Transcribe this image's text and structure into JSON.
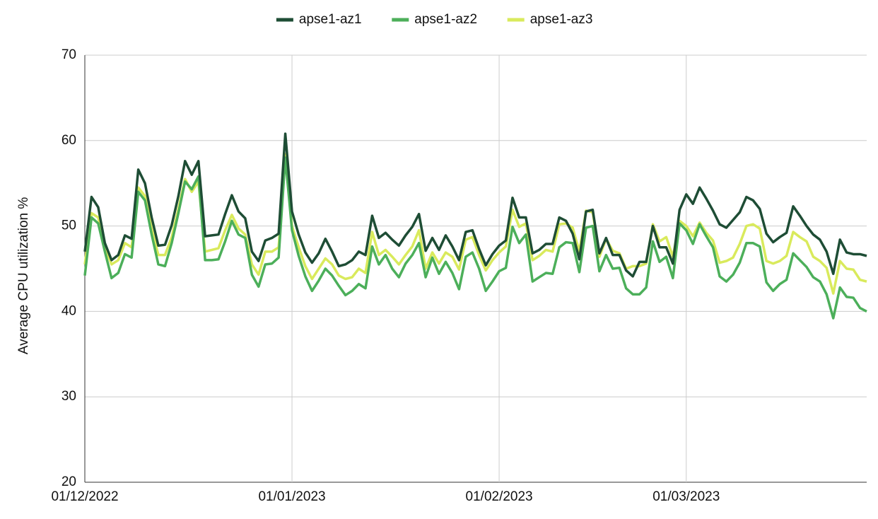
{
  "chart_data": {
    "type": "line",
    "y_label": "Average CPU utilization %",
    "legend": "top",
    "grid": true,
    "xlim": [
      "2022-12-01",
      "2023-03-28"
    ],
    "xticks": [
      {
        "value": "2022-12-01",
        "label": "01/12/2022"
      },
      {
        "value": "2023-01-01",
        "label": "01/01/2023"
      },
      {
        "value": "2023-02-01",
        "label": "01/02/2023"
      },
      {
        "value": "2023-03-01",
        "label": "01/03/2023"
      }
    ],
    "ylim": [
      20,
      70
    ],
    "yticks": [
      20,
      30,
      40,
      50,
      60,
      70
    ],
    "x": [
      "2022-12-01",
      "2022-12-02",
      "2022-12-03",
      "2022-12-04",
      "2022-12-05",
      "2022-12-06",
      "2022-12-07",
      "2022-12-08",
      "2022-12-09",
      "2022-12-10",
      "2022-12-11",
      "2022-12-12",
      "2022-12-13",
      "2022-12-14",
      "2022-12-15",
      "2022-12-16",
      "2022-12-17",
      "2022-12-18",
      "2022-12-19",
      "2022-12-20",
      "2022-12-21",
      "2022-12-22",
      "2022-12-23",
      "2022-12-24",
      "2022-12-25",
      "2022-12-26",
      "2022-12-27",
      "2022-12-28",
      "2022-12-29",
      "2022-12-30",
      "2022-12-31",
      "2023-01-01",
      "2023-01-02",
      "2023-01-03",
      "2023-01-04",
      "2023-01-05",
      "2023-01-06",
      "2023-01-07",
      "2023-01-08",
      "2023-01-09",
      "2023-01-10",
      "2023-01-11",
      "2023-01-12",
      "2023-01-13",
      "2023-01-14",
      "2023-01-15",
      "2023-01-16",
      "2023-01-17",
      "2023-01-18",
      "2023-01-19",
      "2023-01-20",
      "2023-01-21",
      "2023-01-22",
      "2023-01-23",
      "2023-01-24",
      "2023-01-25",
      "2023-01-26",
      "2023-01-27",
      "2023-01-28",
      "2023-01-29",
      "2023-01-30",
      "2023-01-31",
      "2023-02-01",
      "2023-02-02",
      "2023-02-03",
      "2023-02-04",
      "2023-02-05",
      "2023-02-06",
      "2023-02-07",
      "2023-02-08",
      "2023-02-09",
      "2023-02-10",
      "2023-02-11",
      "2023-02-12",
      "2023-02-13",
      "2023-02-14",
      "2023-02-15",
      "2023-02-16",
      "2023-02-17",
      "2023-02-18",
      "2023-02-19",
      "2023-02-20",
      "2023-02-21",
      "2023-02-22",
      "2023-02-23",
      "2023-02-24",
      "2023-02-25",
      "2023-02-26",
      "2023-02-27",
      "2023-02-28",
      "2023-03-01",
      "2023-03-02",
      "2023-03-03",
      "2023-03-04",
      "2023-03-05",
      "2023-03-06",
      "2023-03-07",
      "2023-03-08",
      "2023-03-09",
      "2023-03-10",
      "2023-03-11",
      "2023-03-12",
      "2023-03-13",
      "2023-03-14",
      "2023-03-15",
      "2023-03-16",
      "2023-03-17",
      "2023-03-18",
      "2023-03-19",
      "2023-03-20",
      "2023-03-21",
      "2023-03-22",
      "2023-03-23",
      "2023-03-24",
      "2023-03-25",
      "2023-03-26",
      "2023-03-27",
      "2023-03-28"
    ],
    "series": [
      {
        "name": "apse1-az1",
        "color": "#1e4d35",
        "values": [
          47,
          53.4,
          52.2,
          48,
          46,
          46.6,
          48.9,
          48.5,
          56.6,
          55,
          51,
          47.7,
          47.8,
          50.1,
          53.5,
          57.6,
          56,
          57.6,
          48.8,
          48.9,
          49,
          51.4,
          53.6,
          51.7,
          50.9,
          47,
          45.9,
          48.3,
          48.6,
          49.1,
          60.8,
          51.7,
          49,
          46.9,
          45.7,
          46.8,
          48.5,
          47,
          45.3,
          45.5,
          46,
          47,
          46.6,
          51.2,
          48.6,
          49.2,
          48.4,
          47.7,
          48.9,
          49.9,
          51.4,
          47.1,
          48.6,
          47.2,
          48.9,
          47.6,
          46,
          49.3,
          49.5,
          47.3,
          45.4,
          46.7,
          47.7,
          48.3,
          53.3,
          51,
          51,
          46.8,
          47.2,
          47.9,
          47.9,
          51,
          50.6,
          49.1,
          46.1,
          51.7,
          51.9,
          46.8,
          48.6,
          46.6,
          46.6,
          44.8,
          44.1,
          45.8,
          45.8,
          50,
          47.5,
          47.5,
          45.6,
          51.9,
          53.7,
          52.6,
          54.5,
          53.2,
          51.8,
          50.2,
          49.8,
          50.7,
          51.6,
          53.4,
          53,
          52,
          49.1,
          48.1,
          48.7,
          49.2,
          52.3,
          51.2,
          50,
          49,
          48.4,
          47,
          44.4,
          48.4,
          46.9,
          46.7,
          46.7,
          46.5
        ]
      },
      {
        "name": "apse1-az2",
        "color": "#4caf5a",
        "values": [
          44.2,
          51,
          50.3,
          47,
          43.9,
          44.5,
          46.7,
          46.3,
          54,
          53,
          49,
          45.5,
          45.3,
          48,
          51.5,
          55.2,
          54.3,
          55.8,
          46,
          46,
          46.1,
          48.2,
          50.6,
          49,
          48.6,
          44.3,
          42.9,
          45.5,
          45.6,
          46.3,
          58,
          49.5,
          46.5,
          44.1,
          42.4,
          43.6,
          45,
          44.2,
          43,
          41.9,
          42.4,
          43.2,
          42.7,
          47.6,
          45.5,
          46.6,
          45,
          44,
          45.6,
          46.6,
          48,
          44,
          46.3,
          44.4,
          45.8,
          44.5,
          42.6,
          46.4,
          46.9,
          45,
          42.4,
          43.5,
          44.7,
          45.1,
          49.9,
          48,
          49,
          43.5,
          44,
          44.5,
          44.4,
          47.5,
          48.1,
          48,
          44.6,
          49.8,
          50,
          44.7,
          46.6,
          45,
          45.1,
          42.7,
          42,
          42,
          42.8,
          48.2,
          45.8,
          46.4,
          43.9,
          50.3,
          49.5,
          47.9,
          50.2,
          48.8,
          47.5,
          44.1,
          43.5,
          44.3,
          45.7,
          48,
          48,
          47.6,
          43.4,
          42.4,
          43.2,
          43.7,
          46.8,
          46,
          45.2,
          44,
          43.5,
          42,
          39.2,
          42.8,
          41.7,
          41.6,
          40.4,
          40
        ]
      },
      {
        "name": "apse1-az3",
        "color": "#d9ea5c",
        "values": [
          45.5,
          51.5,
          51,
          47.5,
          45.5,
          46,
          48,
          47.5,
          54.5,
          53.5,
          49.7,
          46.6,
          46.6,
          48.7,
          52,
          55.5,
          54,
          55.2,
          47,
          47.2,
          47.4,
          49.5,
          51.3,
          49.7,
          49,
          45.5,
          44.3,
          47,
          47,
          47.5,
          58.4,
          50,
          47.5,
          45.3,
          43.8,
          45,
          46.2,
          45.5,
          44.2,
          43.8,
          44,
          45,
          44.5,
          49.3,
          46.6,
          47.2,
          46.4,
          45.5,
          46.6,
          47.6,
          49.5,
          45,
          46.9,
          45.6,
          46.9,
          46.4,
          44.9,
          48.4,
          48.7,
          46.6,
          44.8,
          46,
          46.9,
          47.6,
          51.9,
          49.9,
          50.3,
          46,
          46.5,
          47.2,
          47,
          50.2,
          50.3,
          49.8,
          47,
          51.8,
          51.6,
          46.4,
          48.5,
          47.1,
          46.8,
          45,
          45.3,
          45.3,
          45.6,
          50.2,
          48.2,
          48.7,
          46.4,
          50.6,
          50,
          48.8,
          50.4,
          49.2,
          48.3,
          45.7,
          45.9,
          46.3,
          47.9,
          50,
          50.2,
          49.7,
          45.9,
          45.6,
          45.9,
          46.5,
          49.3,
          48.7,
          48.2,
          46.4,
          45.9,
          45.1,
          42.1,
          45.9,
          45,
          44.9,
          43.7,
          43.5
        ]
      }
    ]
  }
}
